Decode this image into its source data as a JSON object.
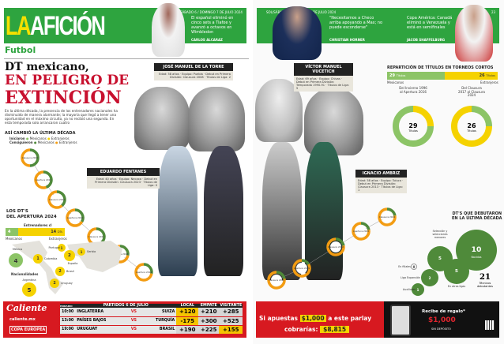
{
  "left_page": {
    "header": {
      "logo_la": "LA",
      "logo_rest": "AFICIÓN",
      "date": "SOLSÁBADO 6 / DOMINGO 7 DE JULIO 2024",
      "teaser": "El español eliminó en cinco sets a Tiafoe y avanzó a octavos en Wimbledon",
      "teaser_credit": "CARLOS ALCARAZ"
    },
    "section": "Futbol",
    "headline_1": "DT mexicano,",
    "headline_2": "EN PELIGRO DE",
    "headline_3": "EXTINCIÓN",
    "lead": "En la última década, la presencia de los entrenadores nacionales ha disminuido de manera alarmante; la mayoría que llegó a tener una oportunidad en el máximo circuito, ya no recibió una segunda. En esta temporada solo arrancaron cuatro",
    "legend": {
      "title": "ASÍ CAMBIÓ LA ÚLTIMA DÉCADA",
      "iniciaron": "Iniciaron",
      "consiguieron": "Consiguieron",
      "mex": "Mexicanos",
      "ext": "Extranjeros"
    },
    "coaches": [
      {
        "name": "JOSÉ MANUEL DE LA TORRE",
        "details": "Edad: 58 años · Equipo: Puebla · Debut en Primera División: Clausura 2008 · Títulos de Liga: 2"
      },
      {
        "name": "EDUARDO FENTANES",
        "details": "Edad: 40 años · Equipo: Necaxa · Debut en Primera División: Clausura 2023 · Títulos de Liga: 0"
      }
    ],
    "apertura": {
      "title_1": "LOS DT'S",
      "title_2": "DEL APERTURA 2024",
      "bar_title": "Entrenadores cl",
      "mex_value": "4",
      "mex_label": "Mexicanos",
      "ext_value": "14",
      "ext_label": "Extranjeros",
      "unit": "DTs",
      "nationalities_title": "Nacionalidades",
      "countries": [
        {
          "name": "México",
          "count": "4",
          "color": "#8cc466"
        },
        {
          "name": "Colombia",
          "count": "1",
          "color": "#f5d200"
        },
        {
          "name": "Portugal",
          "count": "1",
          "color": "#f5d200"
        },
        {
          "name": "España",
          "count": "2",
          "color": "#f5d200"
        },
        {
          "name": "Serbia",
          "count": "1",
          "color": "#f5d200"
        },
        {
          "name": "Brasil",
          "count": "2",
          "color": "#f5d200"
        },
        {
          "name": "Uruguay",
          "count": "2",
          "color": "#f5d200"
        },
        {
          "name": "Argentina",
          "count": "5",
          "color": "#f5d200"
        }
      ]
    },
    "donuts": [
      {
        "label": "Clausura 2015",
        "mex": 9,
        "ext": 9
      },
      {
        "label": "Apertura 2015",
        "mex": 8,
        "ext": 10
      },
      {
        "label": "Clausura 2016",
        "mex": 7,
        "ext": 11
      },
      {
        "label": "Apertura 2016",
        "mex": 6,
        "ext": 12
      },
      {
        "label": "Clausura 2017",
        "mex": 8,
        "ext": 10
      },
      {
        "label": "Apertura 2018",
        "mex": 5,
        "ext": 13
      },
      {
        "label": "Apertura 2019",
        "mex": 5,
        "ext": 13
      }
    ],
    "ad": {
      "brand": "Caliente",
      "site": "caliente.mx",
      "event": "COPA EUROPEA",
      "title": "PARTIDOS 6 DE JULIO",
      "col_time": "HORARIO",
      "col_local": "LOCAL",
      "col_draw": "EMPATE",
      "col_away": "VISITANTE",
      "rows": [
        {
          "time": "10:00",
          "home": "INGLATERRA",
          "vs": "VS",
          "away": "SUIZA",
          "local": "+120",
          "draw": "+210",
          "visit": "+285"
        },
        {
          "time": "13:00",
          "home": "PAÍSES BAJOS",
          "vs": "VS",
          "away": "TURQUÍA",
          "local": "-175",
          "draw": "+300",
          "visit": "+525"
        },
        {
          "time": "19:00",
          "home": "URUGUAY",
          "vs": "VS",
          "away": "BRASIL",
          "local": "+190",
          "draw": "+225",
          "visit": "+155"
        }
      ]
    }
  },
  "right_page": {
    "header": {
      "date": "SOL/SÁBADO 6 / DOMINGO 7 DE JULIO 2024",
      "page": "23",
      "quote": "\"Necesitamos a Checo arriba apoyando a Max; no puede esconderse\"",
      "quote_credit": "CHRISTIAN HORNER",
      "teaser": "Copa América: Canadá eliminó a Venezuela y está en semifinales",
      "teaser_credit": "JACOB SHAFFELBURG"
    },
    "coaches": [
      {
        "name": "VÍCTOR MANUEL VUCETICH",
        "details": "Edad: 69 años · Equipo: Chivas · Debut en Primera División: Temporada 1990-91 · Títulos de Liga: 5"
      },
      {
        "name": "IGNACIO AMBRIZ",
        "details": "Edad: 58 años · Equipo: Toluca · Debut en Primera División: Clausura 2013 · Títulos de Liga: 1"
      }
    ],
    "titles": {
      "title": "REPARTICIÓN DE TÍTULOS EN TORNEOS CORTOS",
      "mex_value": "29",
      "ext_value": "26",
      "unit": "Títulos",
      "mex_label": "Mexicanos",
      "ext_label": "Extranjeros",
      "donut_1": {
        "caption": "Del Invierno 1996 al Apertura 2016",
        "value": "29",
        "label": "Títulos",
        "mex": 75,
        "ext": 25
      },
      "donut_2": {
        "caption": "Del Clausura 2017 al Clausura 2024",
        "value": "26",
        "label": "Títulos",
        "mex": 25,
        "ext": 75
      }
    },
    "donuts": [
      {
        "label": "Clausura 2020",
        "mex": 4,
        "ext": 14
      },
      {
        "label": "Apertura 2021",
        "mex": 3,
        "ext": 15
      },
      {
        "label": "Clausura 2022",
        "mex": 4,
        "ext": 14
      },
      {
        "label": "Apertura 2022",
        "mex": 4,
        "ext": 14
      },
      {
        "label": "Clausura 2024",
        "mex": 4,
        "ext": 14
      }
    ],
    "debut": {
      "title_1": "DT'S QUE DEBUTARON",
      "title_2": "EN LA ÚLTIMA DÉCADA",
      "bubbles": [
        {
          "value": "10",
          "label": "Nacidos"
        },
        {
          "value": "5",
          "label": "Selección y selecciones menores"
        },
        {
          "value": "5",
          "label": "En otras ligas"
        },
        {
          "value": "2",
          "label": "Liga Expansión"
        },
        {
          "value": "1",
          "label": "Auxiliares"
        },
        {
          "value": "0",
          "label": "En filiales"
        }
      ],
      "total": "21",
      "total_label": "Técnicos debutantes"
    },
    "ad": {
      "line_1": "Si apuestas",
      "amount": "$1,000",
      "line_2": "a este parlay",
      "line_3": "cobrarías:",
      "payout": "$8,815",
      "gift_title": "Recibe de regalo*",
      "gift_amount": "$1,000",
      "gift_note": "SIN DEPÓSITO"
    }
  },
  "colors": {
    "green": "#2ea43f",
    "mex_green": "#4f8a3a",
    "light_green": "#8cc466",
    "yellow": "#f5d200",
    "orange": "#f39c12",
    "red": "#c8102e"
  }
}
